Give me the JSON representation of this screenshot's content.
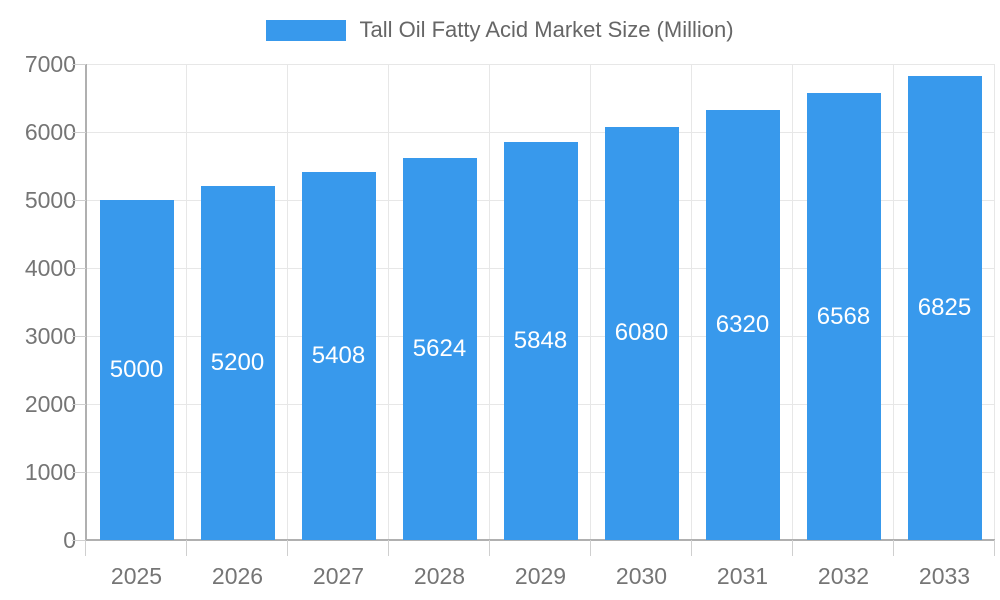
{
  "chart_data": {
    "type": "bar",
    "title": "Tall Oil Fatty Acid Market Size (Million)",
    "categories": [
      "2025",
      "2026",
      "2027",
      "2028",
      "2029",
      "2030",
      "2031",
      "2032",
      "2033"
    ],
    "values": [
      5000,
      5200,
      5408,
      5624,
      5848,
      6080,
      6320,
      6568,
      6825
    ],
    "bar_labels": [
      "5000",
      "5200",
      "5408",
      "5624",
      "5848",
      "6080",
      "6320",
      "6568",
      "6825"
    ],
    "xlabel": "",
    "ylabel": "",
    "ylim": [
      0,
      7000
    ],
    "yticks": [
      0,
      1000,
      2000,
      3000,
      4000,
      5000,
      6000,
      7000
    ],
    "ytick_labels": [
      "0",
      "1000",
      "2000",
      "3000",
      "4000",
      "5000",
      "6000",
      "7000"
    ],
    "legend_position": "top-center",
    "grid": "on",
    "bar_color": "#3899EC",
    "bar_value_text_color": "#ffffff",
    "axis_text_color": "#757575",
    "legend_text_color": "#666666",
    "grid_color": "#e7e7e7",
    "tick_color": "#cfcfcf",
    "axis_line_color": "#b0b0b0"
  }
}
